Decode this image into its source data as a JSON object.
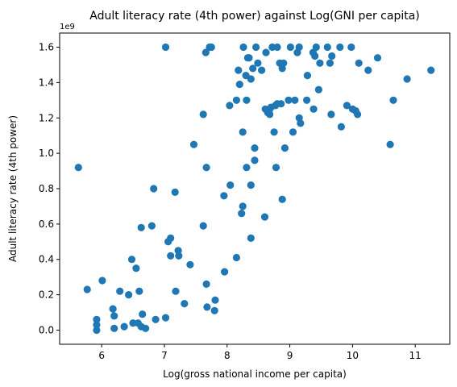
{
  "chart_data": {
    "type": "scatter",
    "title": "Adult literacy rate (4th power) against Log(GNI per capita)",
    "xlabel": "Log(gross national income per capita)",
    "ylabel": "Adult literacy rate (4th power)",
    "y_offset_label": "1e9",
    "xlim": [
      5.33,
      11.55
    ],
    "ylim": [
      -0.08,
      1.68
    ],
    "xticks": [
      6,
      7,
      8,
      9,
      10,
      11
    ],
    "xtick_labels": [
      "6",
      "7",
      "8",
      "9",
      "10",
      "11"
    ],
    "yticks": [
      0.0,
      0.2,
      0.4,
      0.6,
      0.8,
      1.0,
      1.2,
      1.4,
      1.6
    ],
    "ytick_labels": [
      "0.0",
      "0.2",
      "0.4",
      "0.6",
      "0.8",
      "1.0",
      "1.2",
      "1.4",
      "1.6"
    ],
    "grid": false,
    "marker_color": "#1f77b4",
    "points": [
      [
        5.63,
        0.92
      ],
      [
        5.77,
        0.23
      ],
      [
        5.92,
        0.06
      ],
      [
        5.92,
        0.03
      ],
      [
        5.92,
        0.0
      ],
      [
        6.01,
        0.28
      ],
      [
        6.18,
        0.12
      ],
      [
        6.2,
        0.08
      ],
      [
        6.2,
        0.01
      ],
      [
        6.29,
        0.22
      ],
      [
        6.36,
        0.02
      ],
      [
        6.43,
        0.2
      ],
      [
        6.48,
        0.4
      ],
      [
        6.5,
        0.04
      ],
      [
        6.55,
        0.35
      ],
      [
        6.58,
        0.04
      ],
      [
        6.6,
        0.22
      ],
      [
        6.63,
        0.58
      ],
      [
        6.63,
        0.02
      ],
      [
        6.65,
        0.09
      ],
      [
        6.7,
        0.01
      ],
      [
        6.8,
        0.59
      ],
      [
        6.83,
        0.8
      ],
      [
        6.86,
        0.06
      ],
      [
        7.02,
        1.6
      ],
      [
        7.02,
        0.07
      ],
      [
        7.06,
        0.5
      ],
      [
        7.1,
        0.52
      ],
      [
        7.1,
        0.42
      ],
      [
        7.17,
        0.78
      ],
      [
        7.18,
        0.22
      ],
      [
        7.22,
        0.45
      ],
      [
        7.23,
        0.42
      ],
      [
        7.32,
        0.15
      ],
      [
        7.41,
        0.37
      ],
      [
        7.47,
        1.05
      ],
      [
        7.62,
        0.59
      ],
      [
        7.62,
        1.22
      ],
      [
        7.66,
        1.57
      ],
      [
        7.67,
        0.92
      ],
      [
        7.67,
        0.26
      ],
      [
        7.68,
        0.13
      ],
      [
        7.72,
        1.6
      ],
      [
        7.75,
        1.6
      ],
      [
        7.8,
        0.11
      ],
      [
        7.81,
        0.17
      ],
      [
        7.95,
        0.76
      ],
      [
        7.96,
        0.33
      ],
      [
        8.04,
        1.27
      ],
      [
        8.05,
        0.82
      ],
      [
        8.15,
        1.3
      ],
      [
        8.15,
        0.41
      ],
      [
        8.18,
        1.47
      ],
      [
        8.2,
        1.39
      ],
      [
        8.23,
        0.66
      ],
      [
        8.25,
        0.7
      ],
      [
        8.25,
        1.12
      ],
      [
        8.26,
        1.6
      ],
      [
        8.3,
        1.44
      ],
      [
        8.31,
        0.92
      ],
      [
        8.31,
        1.3
      ],
      [
        8.33,
        1.54
      ],
      [
        8.35,
        1.54
      ],
      [
        8.38,
        0.52
      ],
      [
        8.38,
        1.42
      ],
      [
        8.38,
        0.82
      ],
      [
        8.41,
        1.48
      ],
      [
        8.44,
        1.03
      ],
      [
        8.44,
        0.96
      ],
      [
        8.46,
        1.6
      ],
      [
        8.49,
        1.51
      ],
      [
        8.55,
        1.47
      ],
      [
        8.6,
        0.64
      ],
      [
        8.61,
        1.25
      ],
      [
        8.62,
        1.57
      ],
      [
        8.65,
        1.23
      ],
      [
        8.68,
        1.22
      ],
      [
        8.68,
        1.25
      ],
      [
        8.7,
        1.26
      ],
      [
        8.72,
        1.6
      ],
      [
        8.75,
        1.12
      ],
      [
        8.77,
        1.27
      ],
      [
        8.78,
        0.92
      ],
      [
        8.8,
        1.6
      ],
      [
        8.8,
        1.28
      ],
      [
        8.84,
        1.51
      ],
      [
        8.86,
        1.28
      ],
      [
        8.88,
        0.74
      ],
      [
        8.88,
        1.48
      ],
      [
        8.9,
        1.51
      ],
      [
        8.92,
        1.03
      ],
      [
        8.98,
        1.3
      ],
      [
        9.01,
        1.6
      ],
      [
        9.05,
        1.12
      ],
      [
        9.08,
        1.3
      ],
      [
        9.12,
        1.57
      ],
      [
        9.15,
        1.2
      ],
      [
        9.15,
        1.6
      ],
      [
        9.17,
        1.17
      ],
      [
        9.27,
        1.3
      ],
      [
        9.28,
        1.44
      ],
      [
        9.37,
        1.57
      ],
      [
        9.38,
        1.25
      ],
      [
        9.4,
        1.55
      ],
      [
        9.42,
        1.6
      ],
      [
        9.46,
        1.36
      ],
      [
        9.48,
        1.51
      ],
      [
        9.6,
        1.6
      ],
      [
        9.64,
        1.51
      ],
      [
        9.66,
        1.22
      ],
      [
        9.67,
        1.55
      ],
      [
        9.8,
        1.6
      ],
      [
        9.82,
        1.15
      ],
      [
        9.91,
        1.27
      ],
      [
        9.98,
        1.6
      ],
      [
        10.0,
        1.25
      ],
      [
        10.05,
        1.24
      ],
      [
        10.08,
        1.22
      ],
      [
        10.1,
        1.51
      ],
      [
        10.25,
        1.47
      ],
      [
        10.4,
        1.54
      ],
      [
        10.6,
        1.05
      ],
      [
        10.65,
        1.3
      ],
      [
        10.87,
        1.42
      ],
      [
        11.25,
        1.47
      ]
    ]
  }
}
